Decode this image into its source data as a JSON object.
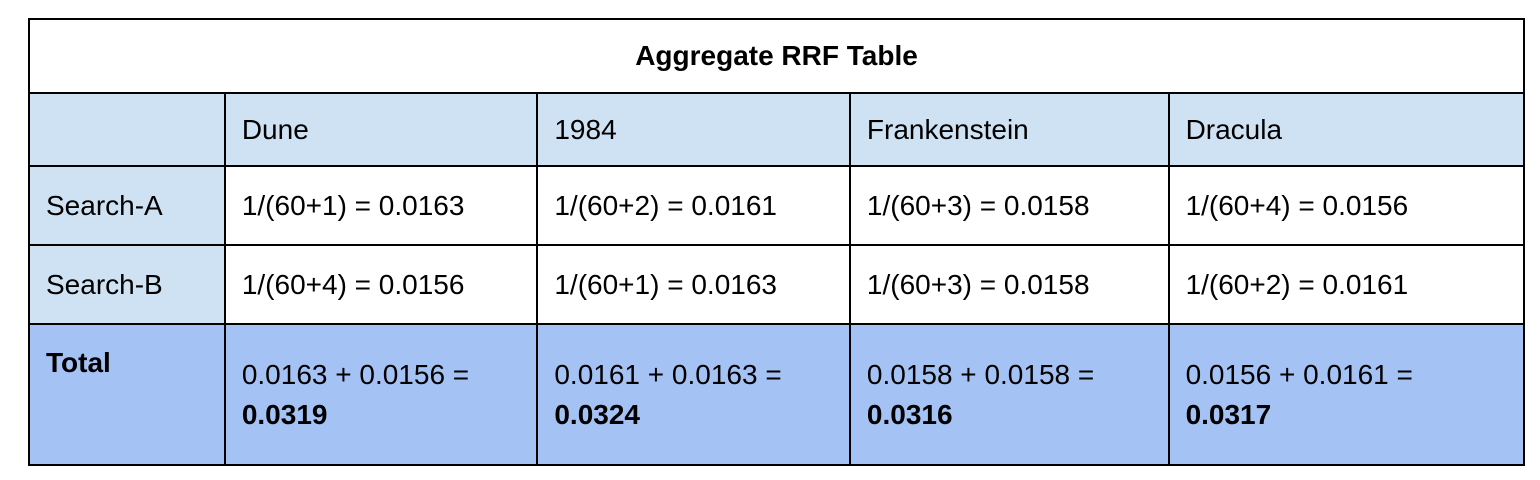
{
  "table": {
    "title": "Aggregate RRF Table",
    "columns": [
      "Dune",
      "1984",
      "Frankenstein",
      "Dracula"
    ],
    "rows": [
      {
        "label": "Search-A",
        "cells": [
          "1/(60+1) = 0.0163",
          "1/(60+2) = 0.0161",
          "1/(60+3) = 0.0158",
          "1/(60+4) = 0.0156"
        ]
      },
      {
        "label": "Search-B",
        "cells": [
          "1/(60+4) = 0.0156",
          "1/(60+1) = 0.0163",
          "1/(60+3) = 0.0158",
          "1/(60+2) = 0.0161"
        ]
      }
    ],
    "total": {
      "label": "Total",
      "cells": [
        {
          "expr": "0.0163 + 0.0156 =",
          "result": "0.0319"
        },
        {
          "expr": "0.0161 + 0.0163 =",
          "result": "0.0324"
        },
        {
          "expr": "0.0158 + 0.0158 =",
          "result": "0.0316"
        },
        {
          "expr": "0.0156 + 0.0161 =",
          "result": "0.0317"
        }
      ]
    }
  }
}
